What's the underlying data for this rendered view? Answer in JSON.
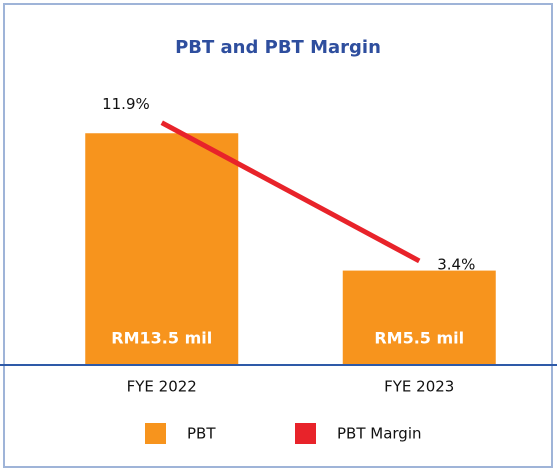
{
  "chart_data": {
    "type": "bar",
    "title": "PBT and PBT Margin",
    "categories": [
      "FYE 2022",
      "FYE 2023"
    ],
    "series": [
      {
        "name": "PBT",
        "color": "#f7941d",
        "values": [
          13.5,
          5.5
        ],
        "value_labels": [
          "RM13.5 mil",
          "RM5.5 mil"
        ]
      },
      {
        "name": "PBT Margin",
        "type": "line",
        "axis": "y2",
        "color": "#e8232a",
        "values": [
          11.9,
          3.4
        ],
        "value_labels": [
          "11.9%",
          "3.4%"
        ]
      }
    ],
    "ylim": [
      0,
      18
    ],
    "y2lim": [
      -3,
      16
    ],
    "legend": "bottom"
  }
}
